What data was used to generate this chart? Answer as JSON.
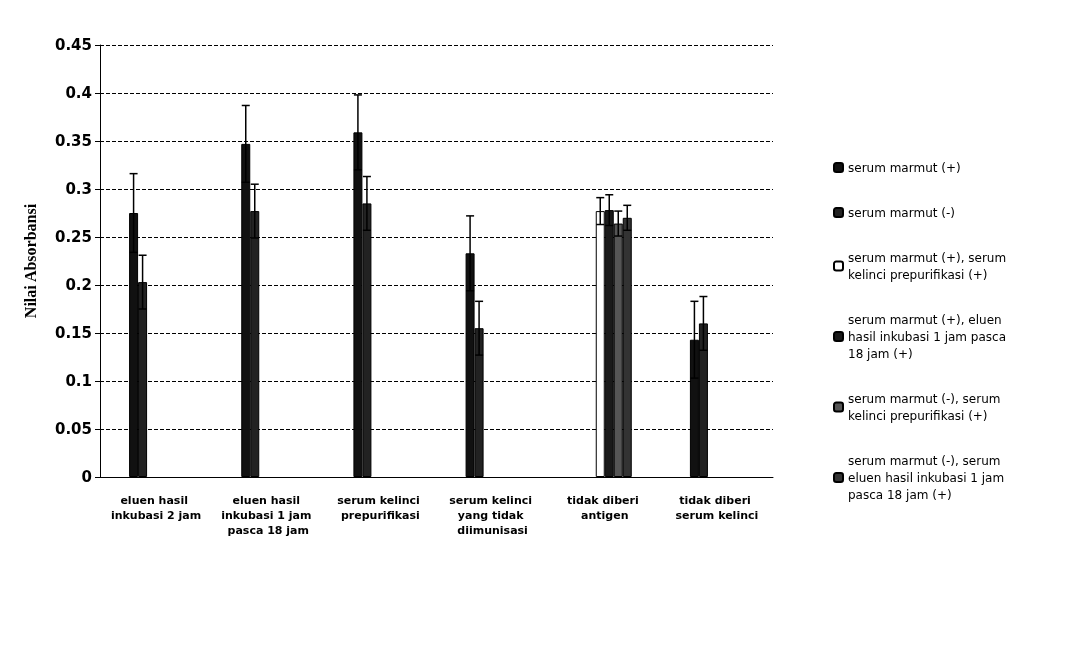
{
  "chart_data": {
    "type": "bar",
    "ylabel": "Nilai Absorbansi",
    "categories": [
      "eluen hasil inkubasi 2 jam",
      "eluen hasil inkubasi 1 jam pasca 18 jam",
      "serum kelinci prepurifikasi",
      "serum kelinci yang tidak diimunisasi",
      "tidak diberi antigen",
      "tidak diberi serum kelinci"
    ],
    "series": [
      {
        "name": "serum marmut (+)",
        "color": "#111111",
        "values": [
          0.275,
          0.347,
          0.359,
          0.233,
          null,
          0.143
        ],
        "errors": [
          0.041,
          0.04,
          0.039,
          0.039,
          null,
          0.04
        ]
      },
      {
        "name": "serum marmut (-)",
        "color": "#222222",
        "values": [
          0.203,
          0.277,
          0.285,
          0.155,
          null,
          0.16
        ],
        "errors": [
          0.028,
          0.028,
          0.028,
          0.028,
          null,
          0.028
        ]
      },
      {
        "name": "serum marmut (+), serum kelinci prepurifikasi (+)",
        "color": "#ffffff",
        "values": [
          null,
          null,
          null,
          null,
          0.277,
          null
        ],
        "errors": [
          null,
          null,
          null,
          null,
          0.014,
          null
        ]
      },
      {
        "name": "serum marmut (+), eluen hasil inkubasi 1 jam pasca 18 jam (+)",
        "color": "#1a1a1a",
        "values": [
          null,
          null,
          null,
          null,
          0.278,
          null
        ],
        "errors": [
          null,
          null,
          null,
          null,
          0.016,
          null
        ]
      },
      {
        "name": "serum marmut (-), serum kelinci prepurifikasi (+)",
        "color": "#555555",
        "values": [
          null,
          null,
          null,
          null,
          0.264,
          null
        ],
        "errors": [
          null,
          null,
          null,
          null,
          0.013,
          null
        ]
      },
      {
        "name": "serum marmut (-), serum eluen hasil inkubasi 1 jam pasca 18 jam (+)",
        "color": "#333333",
        "values": [
          null,
          null,
          null,
          null,
          0.27,
          null
        ],
        "errors": [
          null,
          null,
          null,
          null,
          0.013,
          null
        ]
      }
    ],
    "ylim": [
      0,
      0.45
    ],
    "yticks": [
      0,
      0.05,
      0.1,
      0.15,
      0.2,
      0.25,
      0.3,
      0.35,
      0.4,
      0.45
    ],
    "grid": "y",
    "legend": "right"
  }
}
